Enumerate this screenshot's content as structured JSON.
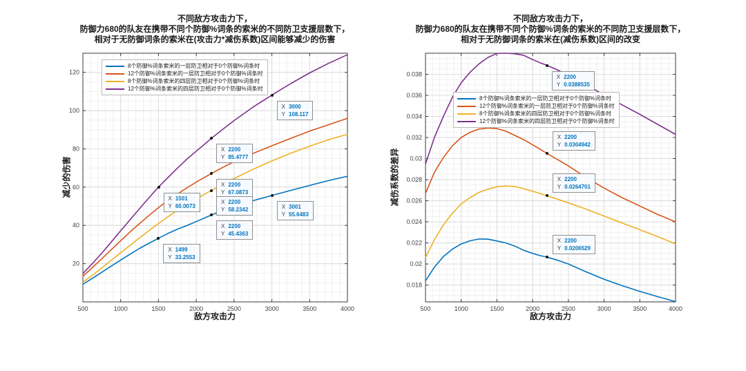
{
  "palette": {
    "blue": "#0072BD",
    "orange": "#D95319",
    "yellow": "#EDB120",
    "purple": "#7E2F8E",
    "axis": "#383838",
    "tick_label": "#404040",
    "grid_major": "#dcdcdc",
    "grid_minor": "#f0f0f0",
    "datatip_value_color": "#0072BD"
  },
  "datatip_labels": {
    "x_prefix": "X",
    "y_prefix": "Y"
  },
  "chart_data": [
    {
      "type": "line",
      "title_lines": [
        "不同敌方攻击力下，",
        "防御力680的队友在携带不同个防御%词条的索米的不同防卫支援层数下，",
        "相对于无防御词条的索米在(攻击力*减伤系数)区间能够减少的伤害"
      ],
      "xlabel": "敌方攻击力",
      "ylabel": "减少的伤害",
      "xlim": [
        500,
        4000
      ],
      "ylim": [
        0,
        130
      ],
      "xticks": [
        500,
        1000,
        1500,
        2000,
        2500,
        3000,
        3500,
        4000
      ],
      "xtick_labels": [
        "500",
        "1000",
        "1500",
        "2000",
        "2500",
        "3000",
        "3500",
        "4000"
      ],
      "yticks": [
        20,
        40,
        60,
        80,
        100,
        120
      ],
      "ytick_labels": [
        "20",
        "40",
        "60",
        "80",
        "100",
        "120"
      ],
      "grid": "major+minor",
      "x_minor_step": 100,
      "y_minor_step": 5,
      "legend_position": "inside-top-left",
      "x": [
        500,
        625,
        750,
        875,
        1000,
        1125,
        1250,
        1375,
        1500,
        1625,
        1750,
        1875,
        2000,
        2100,
        2200,
        2350,
        2500,
        2750,
        3000,
        3250,
        3500,
        3750,
        4000
      ],
      "series": [
        {
          "name": "8个防御%词条索米的一层防卫相对于0个防御%词条时",
          "color": "#0072BD",
          "values": [
            9.2,
            12.3,
            15.5,
            18.7,
            21.9,
            25.0,
            28.0,
            30.7,
            33.26,
            35.8,
            38.0,
            39.9,
            42.0,
            43.7,
            45.4363,
            47.8,
            50.0,
            52.9,
            55.6483,
            58.3,
            60.9,
            63.4,
            65.7
          ]
        },
        {
          "name": "12个防御%词条索米的一层防卫相对于0个防御%词条时",
          "color": "#D95319",
          "values": [
            13.4,
            17.9,
            22.6,
            27.3,
            32.0,
            36.6,
            41.0,
            45.2,
            49.3,
            53.0,
            56.4,
            59.6,
            62.6,
            64.9,
            67.0873,
            70.3,
            73.3,
            77.6,
            81.6,
            85.5,
            89.3,
            92.6,
            96.0
          ]
        },
        {
          "name": "8个防御%词条索米的四层防卫相对于0个防御%词条时",
          "color": "#EDB120",
          "values": [
            10.3,
            13.9,
            17.8,
            21.7,
            25.7,
            29.6,
            33.5,
            37.3,
            41.0,
            44.5,
            47.9,
            50.9,
            53.8,
            56.1,
            58.2342,
            61.5,
            64.5,
            69.3,
            73.7,
            77.7,
            81.4,
            84.8,
            87.6
          ]
        },
        {
          "name": "12个防御%词条索米的四层防卫相对于0个防御%词条时",
          "color": "#7E2F8E",
          "values": [
            14.8,
            20.0,
            25.5,
            31.3,
            37.2,
            43.0,
            48.8,
            54.5,
            60.0073,
            65.0,
            69.9,
            74.6,
            78.8,
            82.1,
            85.4777,
            90.2,
            94.8,
            101.8,
            108.117,
            114.1,
            119.7,
            124.7,
            129.2
          ]
        }
      ],
      "datatips": [
        {
          "series": 3,
          "x_text": "1501",
          "y_text": "60.0073",
          "placement": "below-right"
        },
        {
          "series": 3,
          "x_text": "2200",
          "y_text": "85.4777",
          "placement": "below-right"
        },
        {
          "series": 3,
          "x_text": "3000",
          "y_text": "108.117",
          "placement": "below-right"
        },
        {
          "series": 1,
          "x_text": "2200",
          "y_text": "67.0873",
          "placement": "below-right"
        },
        {
          "series": 2,
          "x_text": "2200",
          "y_text": "58.2342",
          "placement": "below-right"
        },
        {
          "series": 0,
          "x_text": "1499",
          "y_text": "33.2553",
          "placement": "below-right"
        },
        {
          "series": 0,
          "x_text": "2200",
          "y_text": "45.4363",
          "placement": "below-right"
        },
        {
          "series": 0,
          "x_text": "3001",
          "y_text": "55.6483",
          "placement": "below-right"
        }
      ]
    },
    {
      "type": "line",
      "title_lines": [
        "不同敌方攻击力下，",
        "防御力680的队友在携带不同个防御%词条的索米的不同防卫支援层数下，",
        "相对于无防御词条的索米在(减伤系数)区间的改变"
      ],
      "xlabel": "敌方攻击力",
      "ylabel": "减伤系数的差异",
      "xlim": [
        500,
        4000
      ],
      "ylim": [
        0.0164,
        0.04
      ],
      "xticks": [
        500,
        1000,
        1500,
        2000,
        2500,
        3000,
        3500,
        4000
      ],
      "xtick_labels": [
        "500",
        "1000",
        "1500",
        "2000",
        "2500",
        "3000",
        "3500",
        "4000"
      ],
      "yticks": [
        0.018,
        0.02,
        0.022,
        0.024,
        0.026,
        0.028,
        0.03,
        0.032,
        0.034,
        0.036,
        0.038
      ],
      "ytick_labels": [
        "0.018",
        "0.02",
        "0.022",
        "0.024",
        "0.026",
        "0.028",
        "0.03",
        "0.032",
        "0.034",
        "0.036",
        "0.038"
      ],
      "grid": "major+minor",
      "x_minor_step": 100,
      "y_minor_step": 0.0005,
      "legend_position": "inside-upper-left",
      "x": [
        500,
        625,
        750,
        875,
        1000,
        1125,
        1250,
        1375,
        1500,
        1625,
        1750,
        1875,
        2000,
        2100,
        2200,
        2350,
        2500,
        2750,
        3000,
        3250,
        3500,
        3750,
        4000
      ],
      "series": [
        {
          "name": "8个防御%词条索米的一层防卫相对于0个防御%词条时",
          "color": "#0072BD",
          "values": [
            0.0184,
            0.0197,
            0.0207,
            0.0214,
            0.0219,
            0.0222,
            0.02237,
            0.02235,
            0.022185,
            0.022,
            0.0217,
            0.0213,
            0.021,
            0.0208,
            0.0206529,
            0.02035,
            0.02,
            0.01925,
            0.018543,
            0.01795,
            0.0174,
            0.0169,
            0.01643
          ]
        },
        {
          "name": "12个防御%词条索米的一层防卫相对于0个防御%词条时",
          "color": "#D95319",
          "values": [
            0.0267,
            0.0287,
            0.0301,
            0.0312,
            0.032,
            0.0325,
            0.0328,
            0.0329,
            0.03285,
            0.0326,
            0.0322,
            0.0318,
            0.0313,
            0.0309,
            0.0304942,
            0.0299,
            0.0293,
            0.0282,
            0.0272,
            0.0263,
            0.0255,
            0.0247,
            0.024
          ]
        },
        {
          "name": "8个防御%词条索米的四层防卫相对于0个防御%词条时",
          "color": "#EDB120",
          "values": [
            0.0206,
            0.0223,
            0.0237,
            0.0248,
            0.0257,
            0.0263,
            0.0268,
            0.0271,
            0.02733,
            0.0274,
            0.02735,
            0.02715,
            0.0269,
            0.0267,
            0.0264701,
            0.02615,
            0.0258,
            0.0252,
            0.02455,
            0.0239,
            0.02325,
            0.0226,
            0.0219
          ]
        },
        {
          "name": "12个防御%词条索米的四层防卫相对于0个防御%词条时",
          "color": "#7E2F8E",
          "values": [
            0.0295,
            0.032,
            0.034,
            0.0358,
            0.0372,
            0.0382,
            0.039,
            0.0396,
            0.039978,
            0.04,
            0.03995,
            0.0398,
            0.0394,
            0.0391,
            0.0388535,
            0.0384,
            0.0379,
            0.037,
            0.036039,
            0.0351,
            0.0342,
            0.03325,
            0.0323
          ]
        }
      ],
      "datatips": [
        {
          "series": 3,
          "x_text": "2200",
          "y_text": "0.0388535",
          "placement": "below-right"
        },
        {
          "series": 1,
          "x_text": "2200",
          "y_text": "0.0304942",
          "placement": "above-right"
        },
        {
          "series": 2,
          "x_text": "2200",
          "y_text": "0.0264701",
          "placement": "above-right"
        },
        {
          "series": 0,
          "x_text": "2200",
          "y_text": "0.0206529",
          "placement": "above-right"
        }
      ]
    }
  ]
}
